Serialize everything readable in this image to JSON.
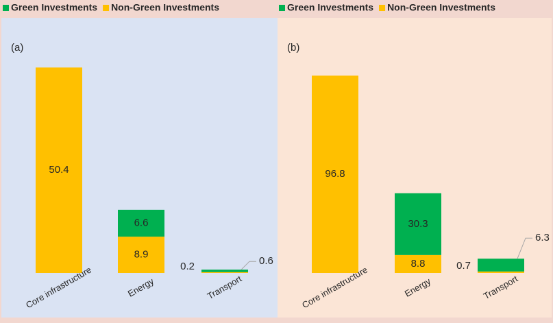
{
  "chart_data": [
    {
      "type": "stacked-bar",
      "title": "(a)",
      "categories": [
        "Core infrastructure",
        "Energy",
        "Transport"
      ],
      "series": [
        {
          "name": "Non-Green Investments",
          "color": "#ffc000",
          "values": [
            50.4,
            8.9,
            0.2
          ]
        },
        {
          "name": "Green Investments",
          "color": "#00b050",
          "values": [
            null,
            6.6,
            0.6
          ]
        }
      ],
      "ylim": [
        0,
        53.5
      ],
      "background": "#dae3f3"
    },
    {
      "type": "stacked-bar",
      "title": "(b)",
      "categories": [
        "Core infrastructure",
        "Energy",
        "Transport"
      ],
      "series": [
        {
          "name": "Non-Green Investments",
          "color": "#ffc000",
          "values": [
            96.8,
            8.8,
            0.7
          ]
        },
        {
          "name": "Green Investments",
          "color": "#00b050",
          "values": [
            null,
            30.3,
            6.3
          ]
        }
      ],
      "ylim": [
        0,
        107
      ],
      "background": "#fbe5d6"
    }
  ]
}
